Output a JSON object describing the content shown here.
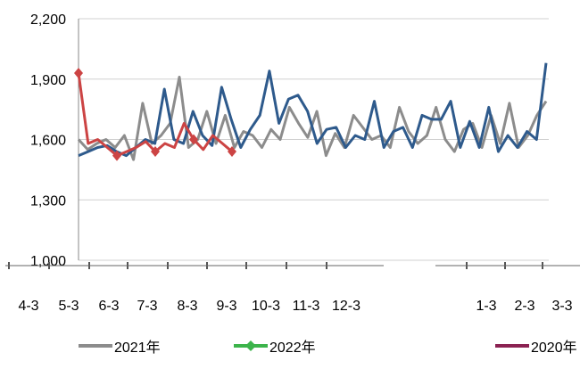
{
  "chart_data": {
    "type": "line",
    "y_ticks": [
      "2,200",
      "1,900",
      "1,600",
      "1,300",
      "1,000"
    ],
    "ylim": [
      1000,
      2200
    ],
    "x_ticks": [
      "4-3",
      "5-3",
      "6-3",
      "7-3",
      "8-3",
      "9-3",
      "10-3",
      "11-3",
      "12-3",
      "1-3",
      "2-3",
      "3-3"
    ],
    "legend": [
      {
        "name": "2021年",
        "color": "#8c8c8c"
      },
      {
        "name": "2022年",
        "color": "#3cb44b"
      },
      {
        "name": "2020年",
        "color": "#8b2252"
      }
    ],
    "series": [
      {
        "name": "2021年",
        "color": "#8c8c8c",
        "values": [
          1600,
          1550,
          1580,
          1600,
          1560,
          1620,
          1500,
          1780,
          1580,
          1620,
          1680,
          1910,
          1560,
          1600,
          1740,
          1580,
          1720,
          1560,
          1640,
          1620,
          1560,
          1650,
          1600,
          1760,
          1680,
          1610,
          1740,
          1520,
          1630,
          1560,
          1720,
          1660,
          1600,
          1620,
          1560,
          1760,
          1640,
          1580,
          1620,
          1760,
          1600,
          1540,
          1650,
          1680,
          1560,
          1720,
          1580,
          1780,
          1560,
          1620,
          1720,
          1790
        ]
      },
      {
        "name": "",
        "color": "#2e5a8c",
        "values": [
          1520,
          1540,
          1560,
          1570,
          1540,
          1520,
          1560,
          1600,
          1580,
          1850,
          1600,
          1580,
          1740,
          1620,
          1570,
          1860,
          1700,
          1560,
          1650,
          1720,
          1940,
          1680,
          1800,
          1820,
          1740,
          1580,
          1650,
          1660,
          1560,
          1620,
          1600,
          1790,
          1560,
          1640,
          1660,
          1560,
          1720,
          1700,
          1700,
          1790,
          1560,
          1690,
          1560,
          1760,
          1540,
          1620,
          1560,
          1640,
          1600,
          1980
        ]
      },
      {
        "name": "",
        "color": "#cc4444",
        "values": [
          1930,
          1580,
          1600,
          1560,
          1520,
          1540,
          1560,
          1590,
          1540,
          1580,
          1560,
          1680,
          1600,
          1550,
          1620,
          1580,
          1540
        ]
      }
    ]
  }
}
